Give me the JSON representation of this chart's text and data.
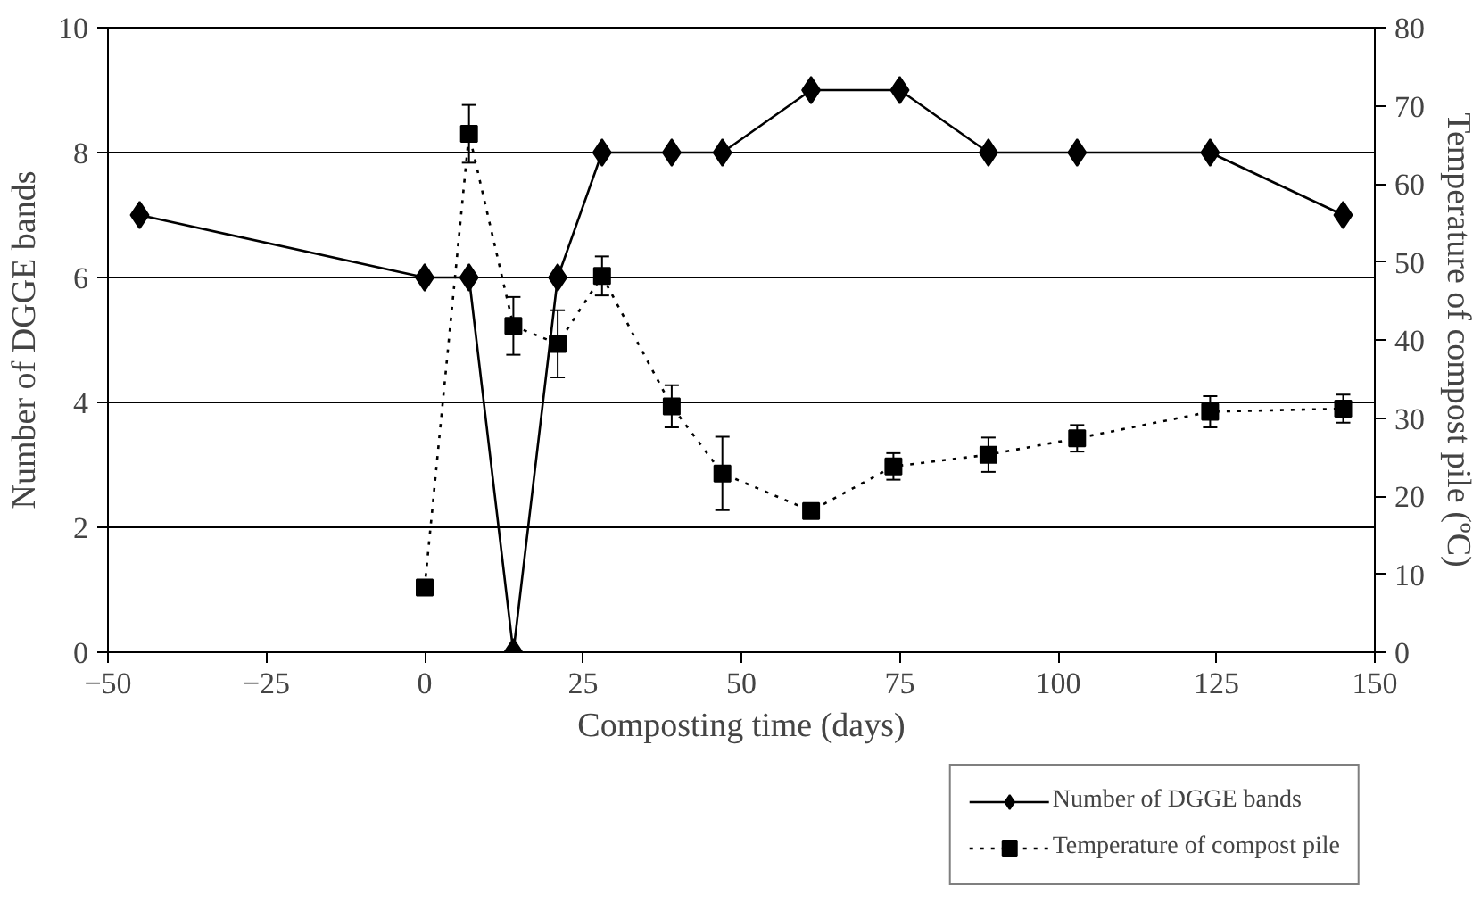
{
  "chart_data": {
    "type": "line",
    "xlabel": "Composting time (days)",
    "ylabel": "Number of DGGE bands",
    "y2label": "Temperature of compost pile (ºC)",
    "series": [
      {
        "name": "Number of DGGE bands",
        "color": "#000000",
        "marker": "diamond",
        "line_style": "solid",
        "x": [
          -45,
          0,
          7,
          14,
          21,
          28,
          39,
          47,
          61,
          75,
          89,
          103,
          124,
          145
        ],
        "values": [
          7,
          6,
          6,
          0,
          6,
          8,
          8,
          8,
          9,
          9,
          8,
          8,
          8,
          7
        ]
      },
      {
        "name": "Temperature of compost pile",
        "color": "#000000",
        "marker": "square",
        "line_style": "dotted",
        "axis": "y2",
        "x": [
          0,
          7,
          14,
          21,
          28,
          39,
          47,
          61,
          74,
          89,
          103,
          124,
          145
        ],
        "values": [
          8.3,
          66.4,
          41.8,
          39.5,
          48.2,
          31.5,
          22.9,
          18.1,
          23.8,
          25.3,
          27.4,
          30.8,
          31.2
        ],
        "errors": [
          null,
          3.7,
          3.7,
          4.3,
          2.5,
          2.7,
          4.7,
          0.8,
          1.7,
          2.2,
          1.7,
          2,
          1.8
        ]
      }
    ],
    "xlim": [
      -50,
      150
    ],
    "xticks": [
      -50,
      -25,
      0,
      25,
      50,
      75,
      100,
      125,
      150
    ],
    "ylim": [
      0,
      10
    ],
    "yticks": [
      0,
      2,
      4,
      6,
      8,
      10
    ],
    "y2lim": [
      0,
      80
    ],
    "y2ticks": [
      0,
      10,
      20,
      30,
      40,
      50,
      60,
      70,
      80
    ],
    "grid": "y",
    "legend": "bottom right"
  }
}
